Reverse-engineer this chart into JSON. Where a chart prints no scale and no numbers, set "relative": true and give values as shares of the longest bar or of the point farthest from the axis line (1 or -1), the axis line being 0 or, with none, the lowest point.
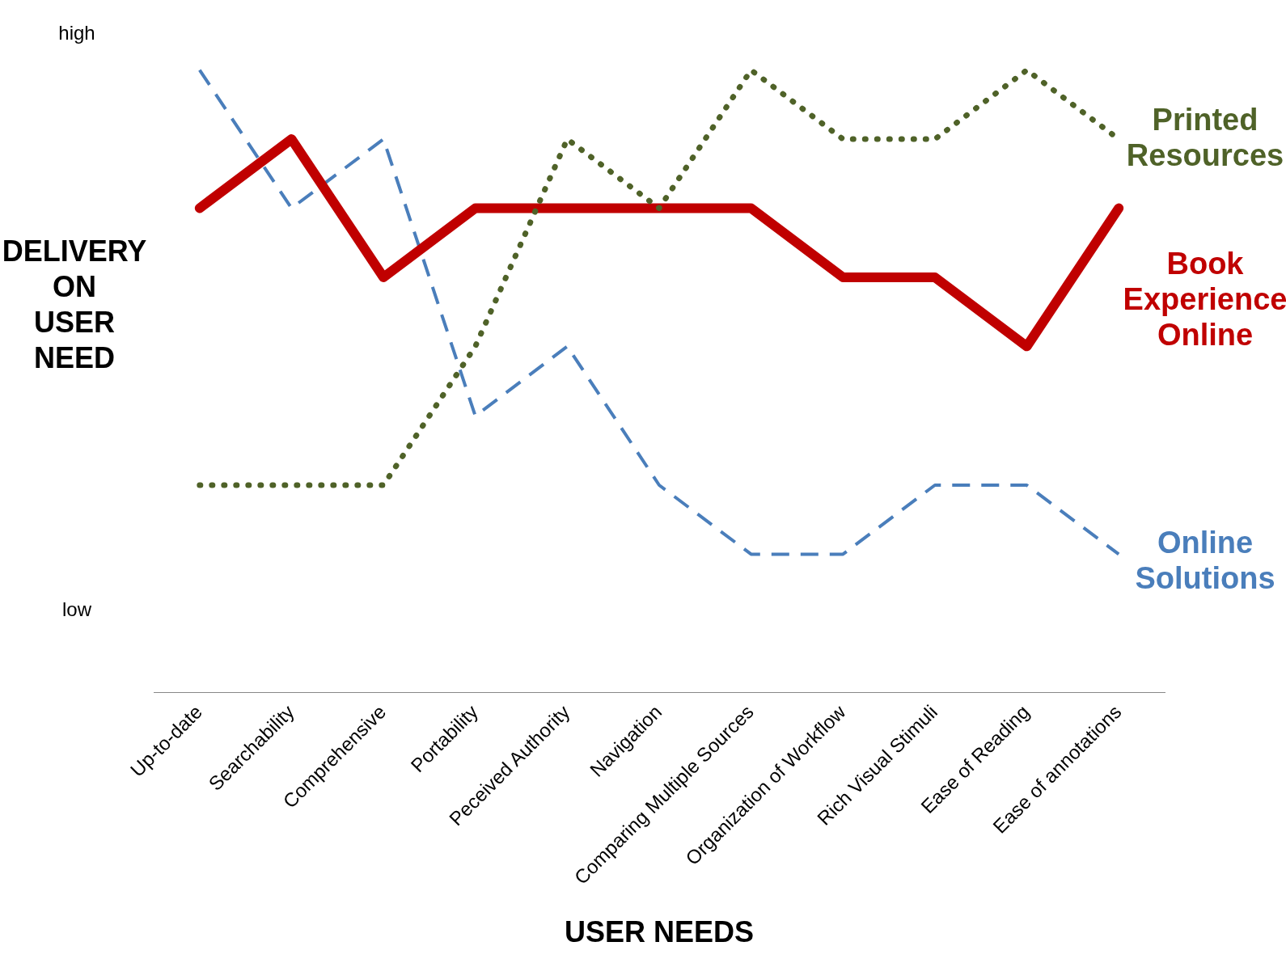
{
  "chart_data": {
    "type": "line",
    "xlabel": "USER NEEDS",
    "ylabel": "DELIVERY ON USER NEED",
    "relative": true,
    "grid": false,
    "legend": false,
    "annotations": [
      "high",
      "low"
    ],
    "categories": [
      "Up-to-date",
      "Searchability",
      "Comprehensive",
      "Portability",
      "Peceived Authority",
      "Navigation",
      "Comparing Multiple Sources",
      "Organization of Workflow",
      "Rich Visual Stimuli",
      "Ease of Reading",
      "Ease of annotations"
    ],
    "series": [
      {
        "name": "Printed Resources",
        "color": "#4f6228",
        "line_style": "dotted",
        "marker": "none",
        "values": [
          0.333,
          0.333,
          0.333,
          0.556,
          0.889,
          0.778,
          1,
          0.889,
          0.889,
          1,
          0.889
        ]
      },
      {
        "name": "Book Experience Online",
        "color": "#c00000",
        "line_style": "solid",
        "marker": "none",
        "values": [
          0.778,
          0.889,
          0.667,
          0.778,
          0.778,
          0.778,
          0.778,
          0.667,
          0.667,
          0.556,
          0.778
        ]
      },
      {
        "name": "Online Solutions",
        "color": "#4a7ebb",
        "line_style": "dashed",
        "marker": "none",
        "values": [
          1,
          0.778,
          0.889,
          0.444,
          0.556,
          0.333,
          0.222,
          0.222,
          0.333,
          0.333,
          0.222
        ]
      }
    ]
  }
}
